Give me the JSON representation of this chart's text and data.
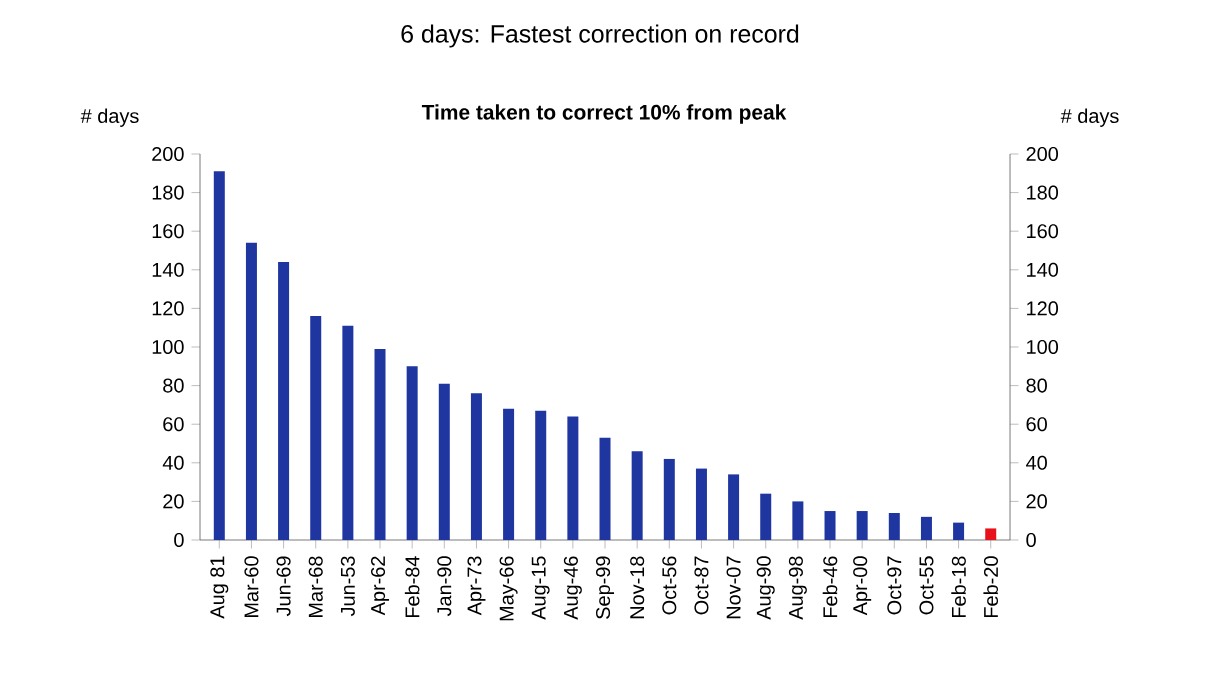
{
  "chart_data": {
    "type": "bar",
    "title": "6 days: Fastest correction on record",
    "subtitle": "Time taken to correct 10% from peak",
    "ylabel": "# days",
    "y2label": "# days",
    "categories": [
      "Aug 81",
      "Mar-60",
      "Jun-69",
      "Mar-68",
      "Jun-53",
      "Apr-62",
      "Feb-84",
      "Jan-90",
      "Apr-73",
      "May-66",
      "Aug-15",
      "Aug-46",
      "Sep-99",
      "Nov-18",
      "Oct-56",
      "Oct-87",
      "Nov-07",
      "Aug-90",
      "Aug-98",
      "Feb-46",
      "Apr-00",
      "Oct-97",
      "Oct-55",
      "Feb-18",
      "Feb-20"
    ],
    "values": [
      191,
      154,
      144,
      116,
      111,
      99,
      90,
      81,
      76,
      68,
      67,
      64,
      53,
      46,
      42,
      37,
      34,
      24,
      20,
      15,
      15,
      14,
      12,
      9,
      6
    ],
    "colors": [
      "#1f35a0",
      "#1f35a0",
      "#1f35a0",
      "#1f35a0",
      "#1f35a0",
      "#1f35a0",
      "#1f35a0",
      "#1f35a0",
      "#1f35a0",
      "#1f35a0",
      "#1f35a0",
      "#1f35a0",
      "#1f35a0",
      "#1f35a0",
      "#1f35a0",
      "#1f35a0",
      "#1f35a0",
      "#1f35a0",
      "#1f35a0",
      "#1f35a0",
      "#1f35a0",
      "#1f35a0",
      "#1f35a0",
      "#1f35a0",
      "#e8101a"
    ],
    "ylim": [
      0,
      200
    ],
    "yticks": [
      0,
      20,
      40,
      60,
      80,
      100,
      120,
      140,
      160,
      180,
      200
    ],
    "y2lim": [
      0,
      200
    ],
    "y2ticks": [
      0,
      20,
      40,
      60,
      80,
      100,
      120,
      140,
      160,
      180,
      200
    ],
    "grid": false
  }
}
